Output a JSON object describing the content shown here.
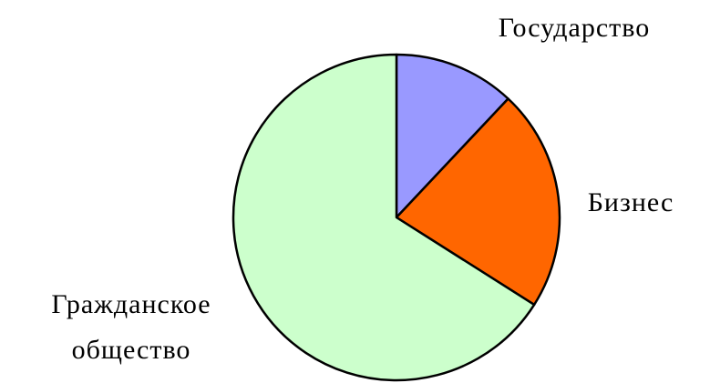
{
  "chart_data": {
    "type": "pie",
    "title": "",
    "start_angle_deg": 0,
    "direction": "clockwise",
    "slices": [
      {
        "label": "Государство",
        "value": 12,
        "color": "#9999ff"
      },
      {
        "label": "Бизнес",
        "value": 22,
        "color": "#ff6600"
      },
      {
        "label": "Гражданское общество",
        "label_lines": [
          "Гражданское",
          "общество"
        ],
        "value": 66,
        "color": "#ccffcc"
      }
    ],
    "outline_color": "#000000",
    "legend": "none",
    "data_labels": "category-names"
  }
}
